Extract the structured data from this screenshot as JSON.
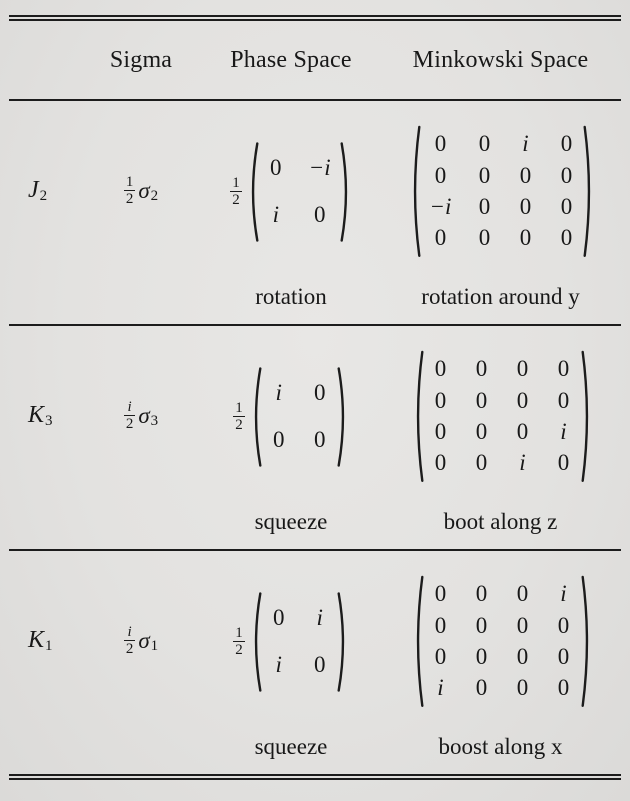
{
  "colors": {
    "background": "#e4e3e1",
    "rule": "#1c1c1c",
    "text": "#181818"
  },
  "header": {
    "col_sigma": "Sigma",
    "col_phase": "Phase Space",
    "col_minkowski": "Minkowski Space"
  },
  "rows": [
    {
      "generator": {
        "base": "J",
        "sub": "2"
      },
      "sigma": {
        "frac_num": "1",
        "frac_den": "2",
        "symbol": "σ",
        "sub": "2"
      },
      "phase": {
        "frac_num": "1",
        "frac_den": "2",
        "matrix": [
          [
            "0",
            "−i"
          ],
          [
            "i",
            "0"
          ]
        ],
        "label": "rotation"
      },
      "minkowski": {
        "matrix": [
          [
            "0",
            "0",
            "i",
            "0"
          ],
          [
            "0",
            "0",
            "0",
            "0"
          ],
          [
            "−i",
            "0",
            "0",
            "0"
          ],
          [
            "0",
            "0",
            "0",
            "0"
          ]
        ],
        "label": "rotation around y"
      }
    },
    {
      "generator": {
        "base": "K",
        "sub": "3"
      },
      "sigma": {
        "frac_num": "i",
        "frac_den": "2",
        "symbol": "σ",
        "sub": "3"
      },
      "phase": {
        "frac_num": "1",
        "frac_den": "2",
        "matrix": [
          [
            "i",
            "0"
          ],
          [
            "0",
            "0"
          ]
        ],
        "label": "squeeze"
      },
      "minkowski": {
        "matrix": [
          [
            "0",
            "0",
            "0",
            "0"
          ],
          [
            "0",
            "0",
            "0",
            "0"
          ],
          [
            "0",
            "0",
            "0",
            "i"
          ],
          [
            "0",
            "0",
            "i",
            "0"
          ]
        ],
        "label": "boot along z"
      }
    },
    {
      "generator": {
        "base": "K",
        "sub": "1"
      },
      "sigma": {
        "frac_num": "i",
        "frac_den": "2",
        "symbol": "σ",
        "sub": "1"
      },
      "phase": {
        "frac_num": "1",
        "frac_den": "2",
        "matrix": [
          [
            "0",
            "i"
          ],
          [
            "i",
            "0"
          ]
        ],
        "label": "squeeze"
      },
      "minkowski": {
        "matrix": [
          [
            "0",
            "0",
            "0",
            "i"
          ],
          [
            "0",
            "0",
            "0",
            "0"
          ],
          [
            "0",
            "0",
            "0",
            "0"
          ],
          [
            "i",
            "0",
            "0",
            "0"
          ]
        ],
        "label": "boost along x"
      }
    }
  ]
}
